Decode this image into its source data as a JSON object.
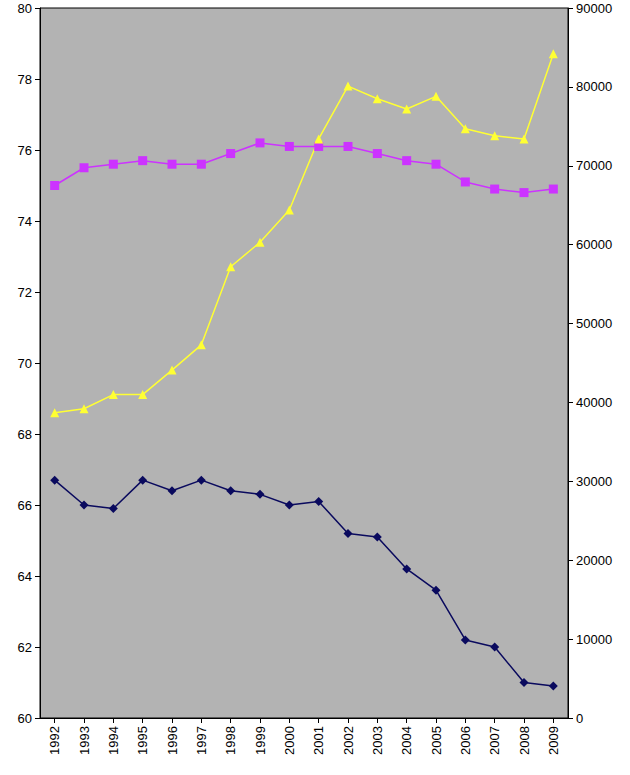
{
  "chart_data": {
    "type": "line",
    "categories": [
      "1992",
      "1993",
      "1994",
      "1995",
      "1996",
      "1997",
      "1998",
      "1999",
      "2000",
      "2001",
      "2002",
      "2003",
      "2004",
      "2005",
      "2006",
      "2007",
      "2008",
      "2009"
    ],
    "series": [
      {
        "color": "#0a0a5e",
        "marker": "diamond",
        "axis": "y",
        "values": [
          66.7,
          66.0,
          65.9,
          66.7,
          66.4,
          66.7,
          66.4,
          66.3,
          66.0,
          66.1,
          65.2,
          65.1,
          64.2,
          63.6,
          62.2,
          62.0,
          61.0,
          60.9
        ]
      },
      {
        "color": "#cc33ff",
        "marker": "square",
        "axis": "y",
        "values": [
          75.0,
          75.5,
          75.6,
          75.7,
          75.6,
          75.6,
          75.9,
          76.2,
          76.1,
          76.1,
          76.1,
          75.9,
          75.7,
          75.6,
          75.1,
          74.9,
          74.8,
          74.9
        ]
      },
      {
        "color": "#ffff33",
        "marker": "triangle",
        "axis": "y2",
        "values": [
          38700,
          39200,
          41000,
          41000,
          44100,
          47300,
          57200,
          60300,
          64400,
          73400,
          80100,
          78500,
          77200,
          78800,
          74700,
          73800,
          73400,
          84200
        ]
      }
    ],
    "ylim": [
      60,
      80
    ],
    "yticks": [
      60,
      62,
      64,
      66,
      68,
      70,
      72,
      74,
      76,
      78,
      80
    ],
    "y2lim": [
      0,
      90000
    ],
    "y2ticks": [
      0,
      10000,
      20000,
      30000,
      40000,
      50000,
      60000,
      70000,
      80000,
      90000
    ],
    "grid": false
  }
}
